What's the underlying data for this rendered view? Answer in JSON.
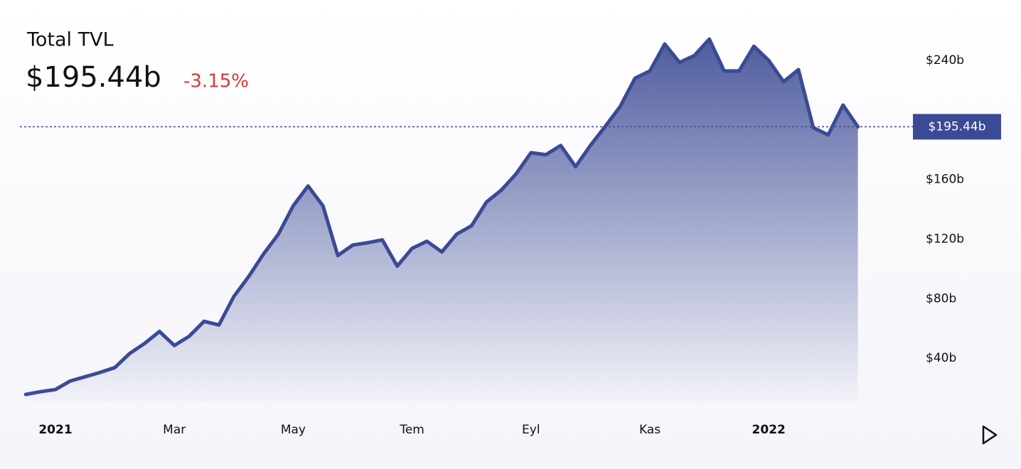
{
  "chart_data": {
    "type": "area",
    "title": "Total TVL",
    "current": {
      "value": 195.44,
      "label": "$195.44b"
    },
    "change": "-3.15%",
    "color": "#3b4a94",
    "change_color": "#d33a3a",
    "categories": [
      null,
      null,
      "2021",
      null,
      null,
      null,
      null,
      null,
      null,
      null,
      "Mar",
      null,
      null,
      null,
      null,
      null,
      null,
      null,
      "May",
      null,
      null,
      null,
      null,
      null,
      null,
      null,
      "Tem",
      null,
      null,
      null,
      null,
      null,
      null,
      null,
      "Eyl",
      null,
      null,
      null,
      null,
      null,
      null,
      null,
      "Kas",
      null,
      null,
      null,
      null,
      null,
      null,
      null,
      "2022",
      null,
      null,
      null,
      null,
      null,
      null
    ],
    "values": [
      15.7,
      17.6,
      19,
      24.8,
      27.6,
      30.5,
      33.8,
      43.3,
      50,
      58,
      48.6,
      54.8,
      64.8,
      62.4,
      81.4,
      94.8,
      110,
      123.3,
      142.4,
      155.7,
      142.4,
      109,
      116,
      117.6,
      119.5,
      101.9,
      113.8,
      118.6,
      111.4,
      123.3,
      129,
      144.8,
      152.9,
      163.8,
      178,
      176.7,
      182.9,
      168.6,
      182.9,
      195.7,
      209,
      228,
      232.9,
      251,
      238.6,
      243.3,
      254.3,
      232.9,
      232.9,
      249.5,
      240,
      225.7,
      233.8,
      194.8,
      190,
      210,
      195.44
    ],
    "ylim": [
      11,
      271
    ],
    "yticks": [
      {
        "value": 40,
        "label": "$40b"
      },
      {
        "value": 80,
        "label": "$80b"
      },
      {
        "value": 120,
        "label": "$120b"
      },
      {
        "value": 160,
        "label": "$160b"
      },
      {
        "value": 240,
        "label": "$240b"
      }
    ]
  }
}
